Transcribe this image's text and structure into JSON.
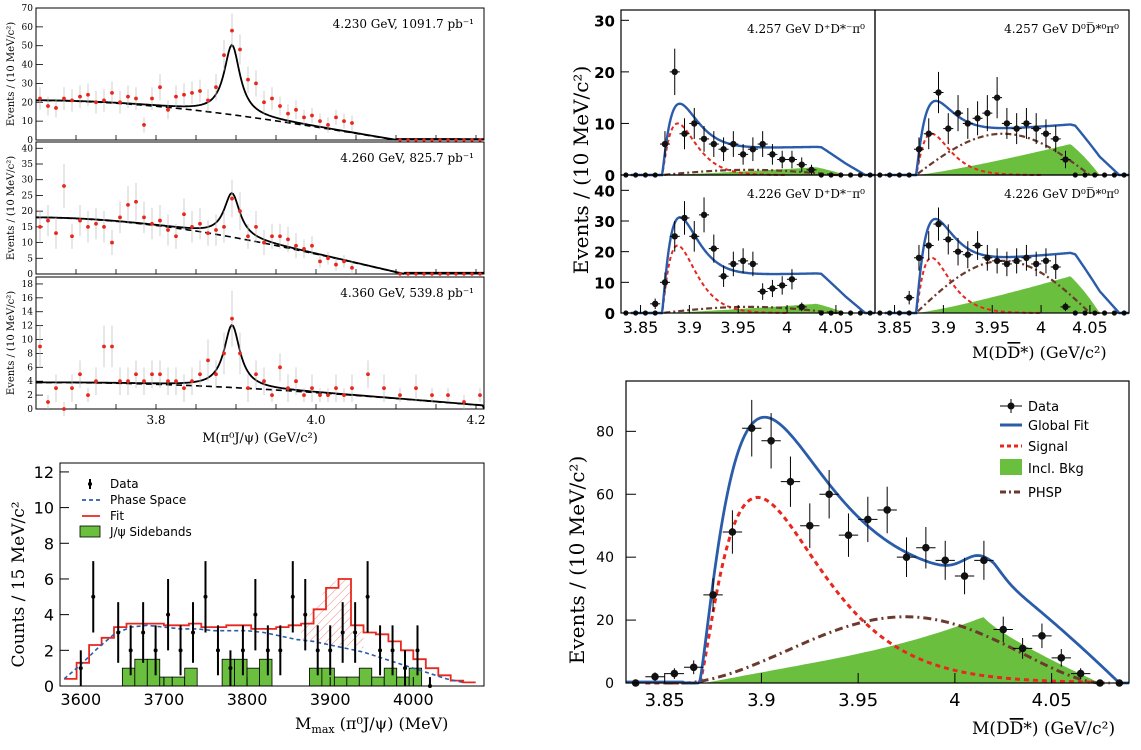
{
  "colors": {
    "red_point": "#e8281e",
    "blue_fit": "#2a5caa",
    "red_signal": "#e8281e",
    "green_bkg": "#6bbf3f",
    "brown_phsp": "#6b3a2e",
    "black": "#000000"
  },
  "chart_data": [
    {
      "id": "tl1",
      "type": "scatter",
      "panel_label": "4.230 GeV, 1091.7 pb⁻¹",
      "ylabel": "Events / (10 MeV/c²)",
      "xlim": [
        3.65,
        4.21
      ],
      "ylim": [
        0,
        70
      ],
      "yticks": [
        0,
        10,
        20,
        30,
        40,
        50,
        60,
        70
      ],
      "ytick_labels": [
        "0",
        "10",
        "20",
        "30",
        "40",
        "50",
        "60",
        "70"
      ],
      "peak": {
        "mass": 3.895,
        "width": 0.012,
        "height": 37
      },
      "background": {
        "start": 21,
        "end_x": 4.1,
        "shape": "dashed"
      },
      "x": [
        3.655,
        3.665,
        3.675,
        3.685,
        3.695,
        3.705,
        3.715,
        3.725,
        3.735,
        3.745,
        3.755,
        3.765,
        3.775,
        3.785,
        3.795,
        3.805,
        3.815,
        3.825,
        3.835,
        3.845,
        3.855,
        3.865,
        3.875,
        3.885,
        3.895,
        3.905,
        3.915,
        3.925,
        3.935,
        3.945,
        3.955,
        3.965,
        3.975,
        3.985,
        3.995,
        4.005,
        4.015,
        4.025,
        4.035,
        4.045
      ],
      "y": [
        22,
        18,
        17,
        22,
        21,
        23,
        24,
        20,
        21,
        25,
        20,
        23,
        22,
        8,
        22,
        28,
        16,
        23,
        24,
        25,
        26,
        21,
        28,
        45,
        58,
        48,
        32,
        30,
        20,
        22,
        18,
        14,
        16,
        12,
        13,
        10,
        8,
        12,
        10,
        9
      ],
      "yerr": [
        6,
        5,
        5,
        6,
        6,
        6,
        6,
        6,
        6,
        6,
        6,
        6,
        6,
        4,
        6,
        7,
        5,
        6,
        6,
        6,
        6,
        6,
        7,
        8,
        9,
        8,
        7,
        7,
        6,
        6,
        5,
        5,
        5,
        4,
        4,
        4,
        4,
        4,
        4,
        4
      ]
    },
    {
      "id": "tl2",
      "type": "scatter",
      "panel_label": "4.260 GeV, 825.7 pb⁻¹",
      "ylabel": "Events / (10 MeV/c²)",
      "xlim": [
        3.65,
        4.21
      ],
      "ylim": [
        0,
        42
      ],
      "yticks": [
        0,
        5,
        10,
        15,
        20,
        25,
        30,
        35,
        40
      ],
      "ytick_labels": [
        "0",
        "5",
        "10",
        "15",
        "20",
        "25",
        "30",
        "35",
        "40"
      ],
      "peak": {
        "mass": 3.895,
        "width": 0.012,
        "height": 14
      },
      "background": {
        "start": 18,
        "end_x": 4.11,
        "shape": "dashed"
      },
      "x": [
        3.655,
        3.665,
        3.675,
        3.685,
        3.695,
        3.705,
        3.715,
        3.725,
        3.735,
        3.745,
        3.755,
        3.765,
        3.775,
        3.785,
        3.795,
        3.805,
        3.815,
        3.825,
        3.835,
        3.845,
        3.855,
        3.865,
        3.875,
        3.885,
        3.895,
        3.905,
        3.915,
        3.925,
        3.935,
        3.945,
        3.955,
        3.965,
        3.975,
        3.985,
        3.995,
        4.005,
        4.015,
        4.025,
        4.035,
        4.045
      ],
      "y": [
        15,
        17,
        13,
        28,
        12,
        17,
        15,
        16,
        15,
        10,
        18,
        22,
        23,
        18,
        16,
        17,
        14,
        12,
        19,
        15,
        16,
        13,
        14,
        15,
        24,
        20,
        12,
        15,
        10,
        12,
        12,
        11,
        9,
        8,
        9,
        4,
        5,
        3,
        4,
        2
      ],
      "yerr": [
        5,
        5,
        5,
        7,
        4,
        5,
        5,
        5,
        5,
        4,
        5,
        6,
        6,
        5,
        5,
        5,
        5,
        4,
        5,
        5,
        5,
        4,
        5,
        5,
        6,
        6,
        4,
        5,
        4,
        4,
        4,
        4,
        4,
        3,
        3,
        2,
        2,
        2,
        2,
        2
      ]
    },
    {
      "id": "tl3",
      "type": "scatter",
      "panel_label": "4.360 GeV, 539.8 pb⁻¹",
      "ylabel": "Events / (10 MeV/c²)",
      "xlim": [
        3.65,
        4.21
      ],
      "ylim": [
        0,
        19
      ],
      "yticks": [
        0,
        2,
        4,
        6,
        8,
        10,
        12,
        14,
        16,
        18
      ],
      "ytick_labels": [
        "0",
        "2",
        "4",
        "6",
        "8",
        "10",
        "12",
        "14",
        "16",
        "18"
      ],
      "xticks": [
        3.8,
        4.0,
        4.2
      ],
      "xtick_labels": [
        "3.8",
        "4.0",
        "4.2"
      ],
      "xlabel": "M(π⁰J/ψ) (GeV/c²)",
      "peak": {
        "mass": 3.895,
        "width": 0.012,
        "height": 9
      },
      "background": {
        "start": 3.8,
        "end_x": 4.21,
        "shape": "dashed"
      },
      "x": [
        3.655,
        3.665,
        3.675,
        3.685,
        3.695,
        3.705,
        3.715,
        3.725,
        3.735,
        3.745,
        3.755,
        3.765,
        3.775,
        3.785,
        3.795,
        3.805,
        3.815,
        3.825,
        3.835,
        3.845,
        3.855,
        3.865,
        3.875,
        3.885,
        3.895,
        3.905,
        3.915,
        3.925,
        3.935,
        3.945,
        3.955,
        3.965,
        3.975,
        3.985,
        3.995,
        4.005,
        4.015,
        4.025,
        4.035,
        4.045,
        4.065,
        4.085,
        4.105,
        4.125,
        4.145,
        4.165,
        4.185,
        4.205
      ],
      "y": [
        9,
        1,
        3,
        0,
        3,
        5,
        2,
        4,
        9,
        9,
        4,
        4,
        5,
        4,
        5,
        5,
        4,
        4,
        3,
        4,
        5,
        7,
        5,
        8,
        13,
        8,
        3,
        5,
        4,
        2,
        6,
        3,
        4,
        2,
        3,
        2,
        2,
        3,
        2,
        3,
        5,
        3,
        2,
        3,
        2,
        2,
        1,
        2
      ],
      "yerr": [
        3,
        1,
        2,
        1,
        2,
        2,
        1,
        2,
        3,
        3,
        2,
        2,
        2,
        2,
        2,
        2,
        2,
        2,
        2,
        2,
        2,
        3,
        2,
        3,
        4,
        3,
        2,
        2,
        2,
        1,
        2,
        2,
        2,
        1,
        2,
        1,
        1,
        2,
        1,
        2,
        2,
        2,
        1,
        2,
        1,
        1,
        1,
        1
      ]
    },
    {
      "id": "bl",
      "type": "bar",
      "ylabel": "Counts / 15 MeV/c²",
      "xlabel": "M",
      "xlabel_sub": "max",
      "xlabel_tail": " (π⁰J/ψ) (MeV)",
      "xlim": [
        3575,
        4085
      ],
      "ylim": [
        0,
        12.5
      ],
      "yticks": [
        0,
        2,
        4,
        6,
        8,
        10,
        12
      ],
      "ytick_labels": [
        "0",
        "2",
        "4",
        "6",
        "8",
        "10",
        "12"
      ],
      "xticks": [
        3600,
        3700,
        3800,
        3900,
        4000
      ],
      "xtick_labels": [
        "3600",
        "3700",
        "3800",
        "3900",
        "4000"
      ],
      "legend": [
        "Data",
        "Phase Space",
        "Fit",
        "J/ψ Sidebands"
      ],
      "data_x": [
        3600,
        3615,
        3645,
        3660,
        3675,
        3690,
        3705,
        3720,
        3735,
        3750,
        3765,
        3780,
        3795,
        3810,
        3825,
        3840,
        3855,
        3870,
        3885,
        3900,
        3915,
        3930,
        3945,
        3960,
        3975,
        3990,
        4005,
        4020
      ],
      "data_y": [
        1,
        5,
        3,
        2,
        3,
        2,
        4,
        2,
        3,
        5,
        2,
        1,
        2,
        4,
        2,
        2,
        5,
        4,
        2,
        2,
        3,
        3,
        5,
        2,
        2,
        1,
        2,
        0
      ],
      "data_err": [
        1,
        2,
        1.7,
        1.4,
        1.7,
        1.4,
        2,
        1.4,
        1.7,
        2,
        1.4,
        1,
        1.4,
        2,
        1.4,
        1.4,
        2,
        2,
        1.4,
        1.4,
        1.7,
        1.7,
        2,
        1.4,
        1.4,
        1,
        1.4,
        0.5
      ],
      "sideband_edges": [
        3650,
        3665,
        3680,
        3695,
        3710,
        3725,
        3740,
        3755,
        3770,
        3785,
        3800,
        3815,
        3830,
        3845,
        3860,
        3875,
        3890,
        3905,
        3920,
        3935,
        3950,
        3965,
        3980,
        3995,
        4010
      ],
      "sideband_values": [
        1,
        1.5,
        1.5,
        0.5,
        0.5,
        1,
        0,
        0,
        1.5,
        1.5,
        1,
        1.5,
        0,
        0,
        0,
        1,
        1,
        0.5,
        0.5,
        1,
        0.5,
        1,
        0.5,
        1
      ],
      "phase_space": {
        "x": [
          3580,
          3600,
          3620,
          3640,
          3660,
          3680,
          3700,
          3720,
          3740,
          3760,
          3780,
          3800,
          3820,
          3840,
          3860,
          3880,
          3900,
          3920,
          3940,
          3960,
          3980,
          4000,
          4020,
          4040,
          4060
        ],
        "y": [
          0.4,
          1.2,
          2.1,
          2.9,
          3.3,
          3.4,
          3.3,
          3.2,
          3.2,
          3.1,
          3.1,
          3.1,
          3.0,
          2.8,
          2.6,
          2.5,
          2.3,
          2.1,
          1.9,
          1.6,
          1.3,
          1.0,
          0.7,
          0.4,
          0.2
        ]
      },
      "fit_edges": [
        3580,
        3595,
        3610,
        3625,
        3640,
        3655,
        3670,
        3685,
        3700,
        3715,
        3730,
        3745,
        3760,
        3775,
        3790,
        3805,
        3820,
        3835,
        3850,
        3865,
        3880,
        3895,
        3910,
        3925,
        3940,
        3955,
        3970,
        3985,
        4000,
        4015,
        4030,
        4045,
        4060,
        4075
      ],
      "fit_values": [
        0.4,
        1.3,
        2.3,
        2.7,
        3.3,
        3.5,
        3.5,
        3.5,
        3.4,
        3.4,
        3.5,
        3.3,
        3.3,
        3.4,
        3.4,
        3.2,
        3.2,
        3.3,
        3.4,
        3.5,
        4.3,
        5.5,
        6.0,
        3.4,
        3.0,
        2.9,
        2.5,
        2.0,
        1.5,
        1.0,
        0.6,
        0.3,
        0.2
      ]
    },
    {
      "id": "tr",
      "type": "line",
      "ylabel": "Events / (10 MeV/c²)",
      "xlabel": "M(D",
      "xlabel_bar": "D",
      "xlabel_tail": "*) (GeV/c²)",
      "xlim": [
        3.83,
        4.09
      ],
      "xticks": [
        3.85,
        3.9,
        3.95,
        4.0,
        4.05
      ],
      "xtick_labels": [
        "3.85",
        "3.9",
        "3.95",
        "4",
        "4.05"
      ],
      "panels": [
        {
          "label": "4.257 GeV D⁺D*⁻π⁰",
          "ylim": [
            0,
            32
          ],
          "yticks": [
            0,
            10,
            20,
            30
          ],
          "ytick_labels": [
            "0",
            "10",
            "20",
            "30"
          ],
          "peak": 10,
          "plateau": 5,
          "bump": 1,
          "green_peak": 1.5,
          "x": [
            3.875,
            3.885,
            3.895,
            3.905,
            3.915,
            3.925,
            3.935,
            3.945,
            3.955,
            3.965,
            3.975,
            3.985,
            3.995,
            4.005,
            4.015,
            4.025
          ],
          "y": [
            6,
            20,
            8,
            10,
            7,
            6,
            5,
            6,
            4,
            5,
            6,
            4,
            3,
            3,
            2,
            1
          ],
          "yerr": [
            2.5,
            4.5,
            3,
            3,
            2.5,
            2.5,
            2.3,
            2.5,
            2,
            2.3,
            2.5,
            2,
            1.7,
            1.7,
            1.4,
            1
          ]
        },
        {
          "label": "4.257 GeV D⁰D̅*⁰π⁰",
          "ylim": [
            0,
            32
          ],
          "yticks": [
            0,
            10,
            20,
            30
          ],
          "ytick_labels": [
            "0",
            "10",
            "20",
            "30"
          ],
          "peak": 8,
          "plateau": 8,
          "bump": 8,
          "green_peak": 6,
          "x": [
            3.875,
            3.885,
            3.895,
            3.905,
            3.915,
            3.925,
            3.935,
            3.945,
            3.955,
            3.965,
            3.975,
            3.985,
            3.995,
            4.005,
            4.015,
            4.025
          ],
          "y": [
            5,
            8,
            16,
            9,
            12,
            10,
            11,
            12,
            15,
            10,
            9,
            10,
            9,
            8,
            7,
            3
          ],
          "yerr": [
            2.3,
            3,
            4,
            3,
            3.5,
            3,
            3.3,
            3.5,
            4,
            3,
            3,
            3,
            3,
            2.8,
            2.6,
            1.7
          ]
        },
        {
          "label": "4.226 GeV D⁺D*⁻π⁰",
          "ylim": [
            0,
            45
          ],
          "yticks": [
            0,
            10,
            20,
            30,
            40
          ],
          "ytick_labels": [
            "0",
            "10",
            "20",
            "30",
            "40"
          ],
          "peak": 22,
          "plateau": 12,
          "bump": 2,
          "green_peak": 3,
          "x": [
            3.865,
            3.875,
            3.885,
            3.895,
            3.905,
            3.915,
            3.925,
            3.935,
            3.945,
            3.955,
            3.965,
            3.975,
            3.985,
            3.995,
            4.005,
            4.015
          ],
          "y": [
            3,
            10,
            25,
            31,
            25,
            32,
            21,
            12,
            16,
            17,
            16,
            7,
            8,
            9,
            11,
            2
          ],
          "yerr": [
            1.7,
            3.2,
            5,
            5.5,
            5,
            5.7,
            4.6,
            3.5,
            4,
            4.1,
            4,
            2.7,
            2.8,
            3,
            3.3,
            1.4
          ]
        },
        {
          "label": "4.226 GeV D⁰D̅*⁰π⁰",
          "ylim": [
            0,
            45
          ],
          "yticks": [
            0,
            10,
            20,
            30,
            40
          ],
          "ytick_labels": [
            "0",
            "10",
            "20",
            "30",
            "40"
          ],
          "peak": 18,
          "plateau": 16,
          "bump": 17,
          "green_peak": 12,
          "x": [
            3.865,
            3.875,
            3.885,
            3.895,
            3.905,
            3.915,
            3.925,
            3.935,
            3.945,
            3.955,
            3.965,
            3.975,
            3.985,
            3.995,
            4.005,
            4.015,
            4.025
          ],
          "y": [
            5,
            18,
            22,
            29,
            24,
            20,
            19,
            22,
            18,
            17,
            16,
            17,
            18,
            16,
            17,
            15,
            2
          ],
          "yerr": [
            2.2,
            4.2,
            4.7,
            5.4,
            4.9,
            4.5,
            4.4,
            4.7,
            4.2,
            4.1,
            4,
            4.1,
            4.2,
            4,
            4.1,
            3.9,
            1.4
          ]
        }
      ]
    },
    {
      "id": "br",
      "type": "line",
      "ylabel": "Events / (10 MeV/c²)",
      "xlabel": "M(D",
      "xlabel_bar": "D",
      "xlabel_tail": "*) (GeV/c²)",
      "xlim": [
        3.83,
        4.09
      ],
      "ylim": [
        0,
        96
      ],
      "yticks": [
        0,
        20,
        40,
        60,
        80
      ],
      "ytick_labels": [
        "0",
        "20",
        "40",
        "60",
        "80"
      ],
      "xticks": [
        3.85,
        3.9,
        3.95,
        4.0,
        4.05
      ],
      "xtick_labels": [
        "3.85",
        "3.9",
        "3.95",
        "4",
        "4.05"
      ],
      "legend": [
        "Data",
        "Global Fit",
        "Signal",
        "Incl. Bkg",
        "PHSP"
      ],
      "x": [
        3.835,
        3.845,
        3.855,
        3.865,
        3.875,
        3.885,
        3.895,
        3.905,
        3.915,
        3.925,
        3.935,
        3.945,
        3.955,
        3.965,
        3.975,
        3.985,
        3.995,
        4.005,
        4.015,
        4.025,
        4.035,
        4.045,
        4.055,
        4.065,
        4.075,
        4.085
      ],
      "y": [
        0,
        2,
        3,
        5,
        28,
        48,
        81,
        77,
        64,
        50,
        60,
        47,
        52,
        55,
        40,
        43,
        39,
        34,
        39,
        17,
        11,
        15,
        8,
        3,
        0,
        0
      ],
      "yerr": [
        0.5,
        1.4,
        1.7,
        2.2,
        5.3,
        6.9,
        9,
        8.8,
        8,
        7.1,
        7.7,
        6.9,
        7.2,
        7.4,
        6.3,
        6.6,
        6.2,
        5.8,
        6.2,
        4.1,
        3.3,
        3.9,
        2.8,
        1.7,
        0.5,
        0.5
      ]
    }
  ]
}
